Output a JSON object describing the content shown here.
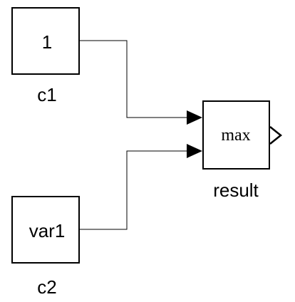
{
  "diagram": {
    "blocks": {
      "c1": {
        "value_text": "1",
        "name_label": "c1"
      },
      "c2": {
        "value_text": "var1",
        "name_label": "c2"
      },
      "result": {
        "op_text": "max",
        "name_label": "result"
      }
    },
    "colors": {
      "stroke": "#000000",
      "fill": "#ffffff",
      "text": "#000000"
    }
  }
}
